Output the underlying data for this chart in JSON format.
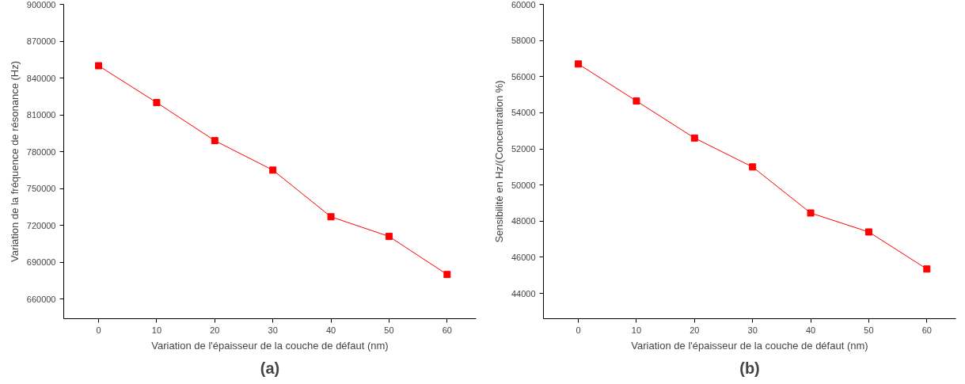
{
  "chart_data": [
    {
      "type": "line",
      "xlabel": "Variation de l'épaisseur de la couche de défaut (nm)",
      "ylabel": "Variation de la fréquence de résonance (Hz)",
      "annotations": [
        "(a)"
      ],
      "x": [
        0,
        10,
        20,
        30,
        40,
        50,
        60
      ],
      "series": [
        {
          "color": "#ff0000",
          "values": [
            850000,
            820000,
            789000,
            765000,
            727000,
            711000,
            680000
          ]
        }
      ],
      "marker": "square",
      "xlim": [
        -6,
        65
      ],
      "xticks": [
        0,
        10,
        20,
        30,
        40,
        50,
        60
      ],
      "ylim": [
        644000,
        900000
      ],
      "yticks": [
        660000,
        690000,
        720000,
        750000,
        780000,
        810000,
        840000,
        870000,
        900000
      ]
    },
    {
      "type": "line",
      "xlabel": "Variation de l'épaisseur de la couche de défaut (nm)",
      "ylabel": "Sensibilité en Hz/(Concentration %)",
      "annotations": [
        "(b)"
      ],
      "x": [
        0,
        10,
        20,
        30,
        40,
        50,
        60
      ],
      "series": [
        {
          "color": "#ff0000",
          "values": [
            56700,
            54650,
            52600,
            51000,
            48450,
            47400,
            45350
          ]
        }
      ],
      "marker": "square",
      "xlim": [
        -6,
        65
      ],
      "xticks": [
        0,
        10,
        20,
        30,
        40,
        50,
        60
      ],
      "ylim": [
        42600,
        60000
      ],
      "yticks": [
        44000,
        46000,
        48000,
        50000,
        52000,
        54000,
        56000,
        58000,
        60000
      ]
    }
  ]
}
